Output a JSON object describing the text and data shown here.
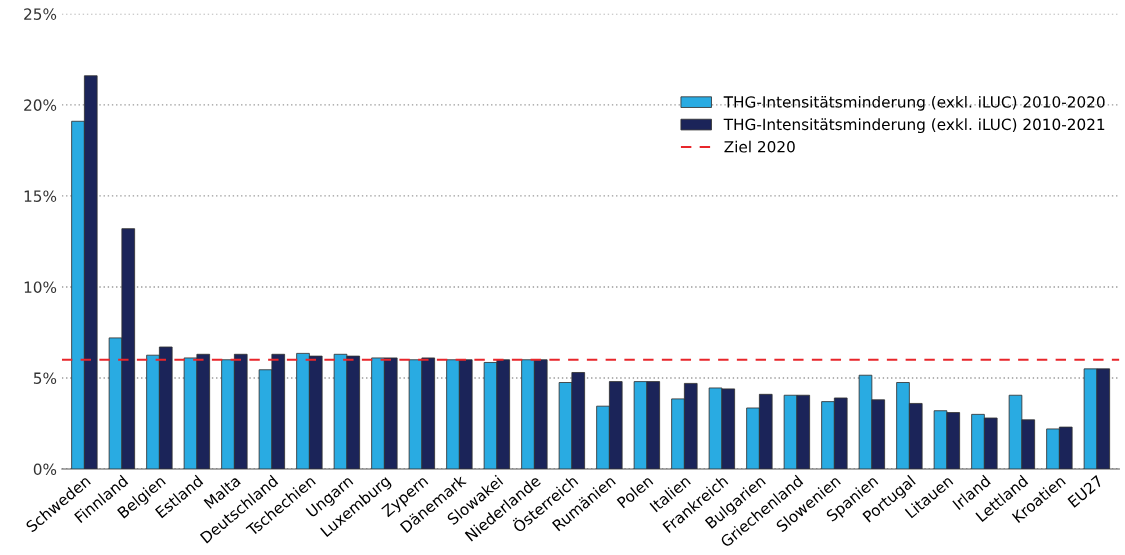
{
  "chart_data": {
    "type": "bar",
    "categories": [
      "Schweden",
      "Finnland",
      "Belgien",
      "Estland",
      "Malta",
      "Deutschland",
      "Tschechien",
      "Ungarn",
      "Luxemburg",
      "Zypern",
      "Dänemark",
      "Slowakei",
      "Niederlande",
      "Österreich",
      "Rumänien",
      "Polen",
      "Italien",
      "Frankreich",
      "Bulgarien",
      "Griechenland",
      "Slowenien",
      "Spanien",
      "Portugal",
      "Litauen",
      "Irland",
      "Lettland",
      "Kroatien",
      "EU27"
    ],
    "series": [
      {
        "name": "THG-Intensitätsminderung (exkl. iLUC) 2010-2020",
        "color": "#29abe2",
        "values": [
          19.1,
          7.2,
          6.25,
          6.1,
          6.0,
          5.45,
          6.35,
          6.3,
          6.1,
          6.0,
          6.0,
          5.85,
          6.0,
          4.75,
          3.45,
          4.8,
          3.85,
          4.45,
          3.35,
          4.05,
          3.7,
          5.15,
          4.75,
          3.2,
          3.0,
          4.05,
          2.2,
          5.5
        ]
      },
      {
        "name": "THG-Intensitätsminderung (exkl. iLUC) 2010-2021",
        "color": "#1b2459",
        "values": [
          21.6,
          13.2,
          6.7,
          6.3,
          6.3,
          6.3,
          6.2,
          6.2,
          6.1,
          6.1,
          6.0,
          6.0,
          6.0,
          5.3,
          4.8,
          4.8,
          4.7,
          4.4,
          4.1,
          4.05,
          3.9,
          3.8,
          3.6,
          3.1,
          2.8,
          2.7,
          2.3,
          5.5
        ]
      }
    ],
    "ref_lines": [
      {
        "axis": "y",
        "value": 6,
        "label": "Ziel 2020",
        "color": "#e8262b",
        "line_style": "dashed"
      }
    ],
    "ylim": [
      0,
      25
    ],
    "yticks": [
      {
        "value": 0,
        "label": "0%"
      },
      {
        "value": 5,
        "label": "5%"
      },
      {
        "value": 10,
        "label": "10%"
      },
      {
        "value": 15,
        "label": "15%"
      },
      {
        "value": 20,
        "label": "20%"
      },
      {
        "value": 25,
        "label": "25%"
      }
    ],
    "grid": "y",
    "legend": "top right"
  }
}
